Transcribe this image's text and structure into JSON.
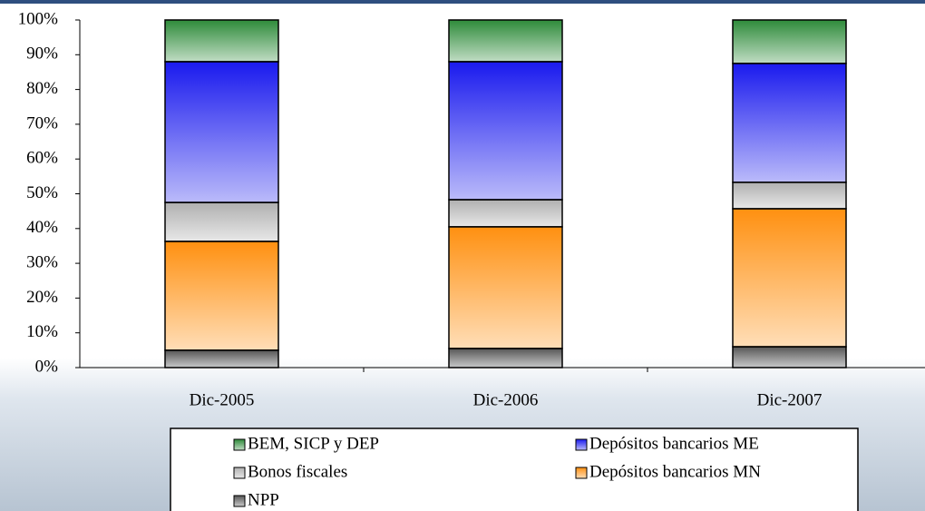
{
  "chart_data": {
    "type": "stacked_bar",
    "categories": [
      "Dic-2005",
      "Dic-2006",
      "Dic-2007"
    ],
    "series": [
      {
        "name": "NPP",
        "color": "#555555",
        "values": [
          5,
          5.5,
          6
        ]
      },
      {
        "name": "Depósitos bancarios MN",
        "color": "#ff9010",
        "values": [
          31.3,
          35,
          39.7
        ]
      },
      {
        "name": "Bonos fiscales",
        "color": "#b0b0b0",
        "values": [
          11.2,
          7.8,
          7.6
        ]
      },
      {
        "name": "Depósitos bancarios ME",
        "color": "#1a1aee",
        "values": [
          40.5,
          39.7,
          34.2
        ]
      },
      {
        "name": "BEM, SICP y DEP",
        "color": "#2e8b3a",
        "values": [
          12,
          12,
          12.5
        ]
      }
    ],
    "ylim": [
      0,
      100
    ],
    "yticks": [
      {
        "value": 0,
        "label": "0%"
      },
      {
        "value": 10,
        "label": "10%"
      },
      {
        "value": 20,
        "label": "20%"
      },
      {
        "value": 30,
        "label": "30%"
      },
      {
        "value": 40,
        "label": "40%"
      },
      {
        "value": 50,
        "label": "50%"
      },
      {
        "value": 60,
        "label": "60%"
      },
      {
        "value": 70,
        "label": "70%"
      },
      {
        "value": 80,
        "label": "80%"
      },
      {
        "value": 90,
        "label": "90%"
      },
      {
        "value": 100,
        "label": "100%"
      }
    ]
  }
}
